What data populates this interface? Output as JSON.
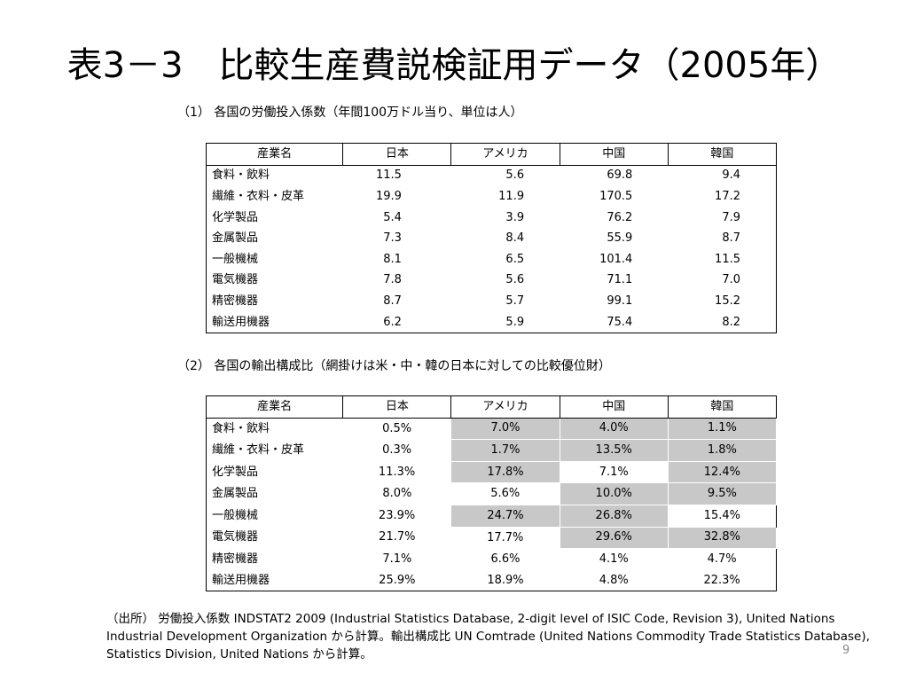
{
  "title": "表3－3　比較生産費説検証用データ（2005年）",
  "table1": {
    "caption": "（1）  各国の労働投入係数（年間100万ドル当り、単位は人）",
    "headers": [
      "産業名",
      "日本",
      "アメリカ",
      "中国",
      "韓国"
    ],
    "rows": [
      [
        "食料・飲料",
        "11.5",
        "5.6",
        "69.8",
        "9.4"
      ],
      [
        "繊維・衣料・皮革",
        "19.9",
        "11.9",
        "170.5",
        "17.2"
      ],
      [
        "化学製品",
        "5.4",
        "3.9",
        "76.2",
        "7.9"
      ],
      [
        "金属製品",
        "7.3",
        "8.4",
        "55.9",
        "8.7"
      ],
      [
        "一般機械",
        "8.1",
        "6.5",
        "101.4",
        "11.5"
      ],
      [
        "電気機器",
        "7.8",
        "5.6",
        "71.1",
        "7.0"
      ],
      [
        "精密機器",
        "8.7",
        "5.7",
        "99.1",
        "15.2"
      ],
      [
        "輸送用機器",
        "6.2",
        "5.9",
        "75.4",
        "8.2"
      ]
    ]
  },
  "table2": {
    "caption": "（2）  各国の輸出構成比（網掛けは米・中・韓の日本に対しての比較優位財）",
    "headers": [
      "産業名",
      "日本",
      "アメリカ",
      "中国",
      "韓国"
    ],
    "rows": [
      [
        "食料・飲料",
        "0.5%",
        "7.0%",
        "4.0%",
        "1.1%"
      ],
      [
        "繊維・衣料・皮革",
        "0.3%",
        "1.7%",
        "13.5%",
        "1.8%"
      ],
      [
        "化学製品",
        "11.3%",
        "17.8%",
        "7.1%",
        "12.4%"
      ],
      [
        "金属製品",
        "8.0%",
        "5.6%",
        "10.0%",
        "9.5%"
      ],
      [
        "一般機械",
        "23.9%",
        "24.7%",
        "26.8%",
        "15.4%"
      ],
      [
        "電気機器",
        "21.7%",
        "17.7%",
        "29.6%",
        "32.8%"
      ],
      [
        "精密機器",
        "7.1%",
        "6.6%",
        "4.1%",
        "4.7%"
      ],
      [
        "輸送用機器",
        "25.9%",
        "18.9%",
        "4.8%",
        "22.3%"
      ]
    ],
    "shaded": [
      [
        false,
        true,
        true,
        true
      ],
      [
        false,
        true,
        true,
        true
      ],
      [
        false,
        true,
        false,
        true
      ],
      [
        false,
        false,
        true,
        true
      ],
      [
        false,
        true,
        true,
        false
      ],
      [
        false,
        false,
        true,
        true
      ],
      [
        false,
        false,
        false,
        false
      ],
      [
        false,
        false,
        false,
        false
      ]
    ],
    "shade_color": "#c8c8c8"
  },
  "source": "（出所） 労働投入係数 INDSTAT2 2009 (Industrial Statistics Database, 2-digit level of ISIC Code, Revision 3), United Nations Industrial Development Organization から計算。輸出構成比 UN Comtrade (United Nations Commodity Trade Statistics Database), Statistics Division, United Nations から計算。",
  "page_number": "9"
}
